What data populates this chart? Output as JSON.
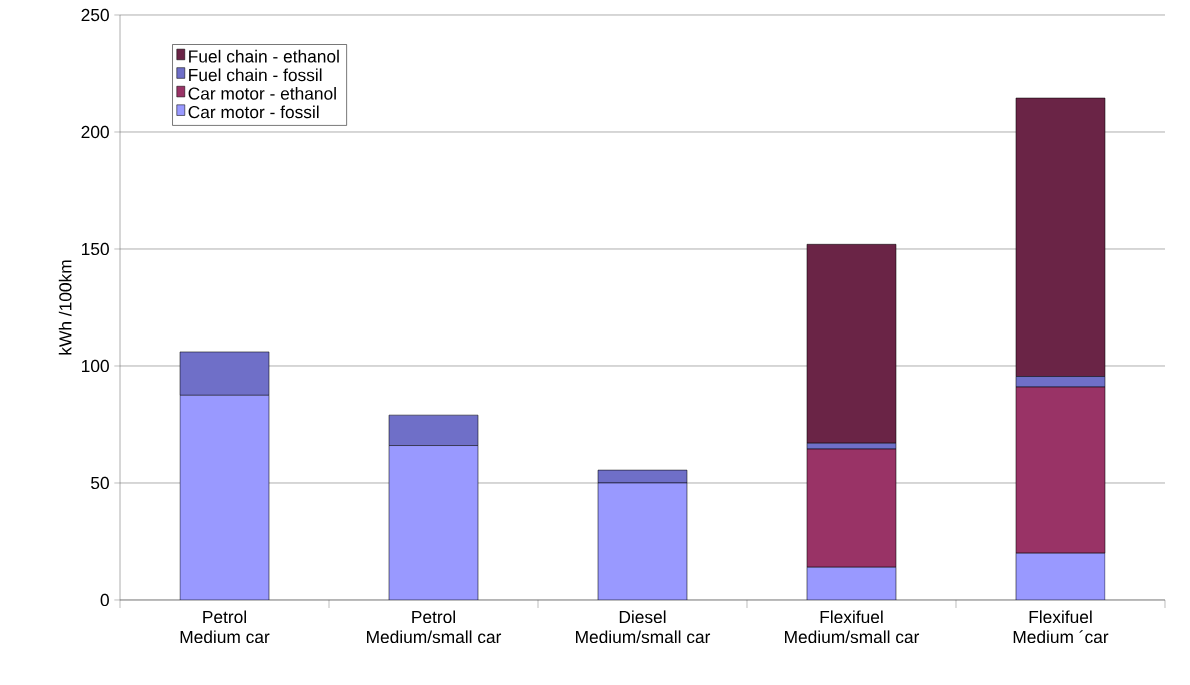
{
  "chart_data": {
    "type": "bar",
    "stacked": true,
    "ylabel": "kWh /100km",
    "categories": [
      "Petrol\nMedium car",
      "Petrol\nMedium/small car",
      "Diesel\nMedium/small car",
      "Flexifuel\nMedium/small car",
      "Flexifuel\nMedium ´car"
    ],
    "series": [
      {
        "name": "Car motor - fossil",
        "color": "#9999ff",
        "values": [
          87.5,
          66,
          50,
          14,
          20
        ]
      },
      {
        "name": "Car motor - ethanol",
        "color": "#993366",
        "values": [
          0,
          0,
          0,
          50.5,
          71
        ]
      },
      {
        "name": "Fuel chain - fossil",
        "color": "#6f6fc8",
        "values": [
          18.5,
          13,
          5.5,
          2.5,
          4.5
        ]
      },
      {
        "name": "Fuel chain - ethanol",
        "color": "#6a2446",
        "values": [
          0,
          0,
          0,
          85,
          119
        ]
      }
    ],
    "ylim": [
      0,
      250
    ],
    "yticks": [
      0,
      50,
      100,
      150,
      200,
      250
    ],
    "grid": "y",
    "legend": "top left"
  }
}
